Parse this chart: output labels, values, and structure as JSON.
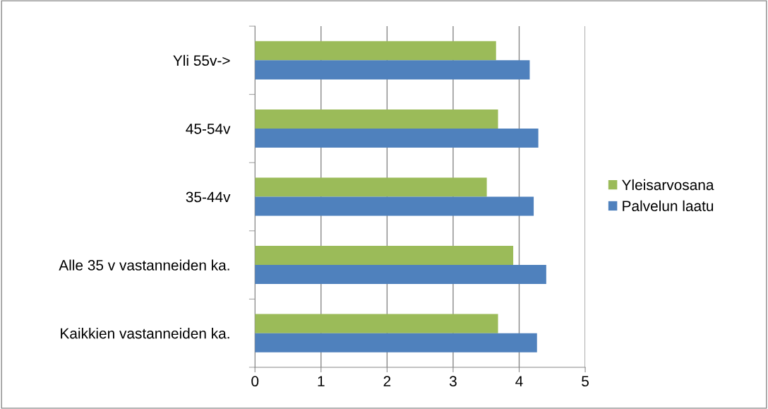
{
  "chart_data": {
    "type": "bar",
    "orientation": "horizontal",
    "categories": [
      "Yli 55v->",
      "45-54v",
      "35-44v",
      "Alle 35 v vastanneiden ka.",
      "Kaikkien vastanneiden ka."
    ],
    "series": [
      {
        "name": "Yleisarvosana",
        "color": "#9bbb59",
        "values": [
          3.65,
          3.68,
          3.51,
          3.91,
          3.68
        ]
      },
      {
        "name": "Palvelun laatu",
        "color": "#4f81bd",
        "values": [
          4.16,
          4.29,
          4.22,
          4.41,
          4.27
        ]
      }
    ],
    "xlim": [
      0,
      5
    ],
    "xticks": [
      0,
      1,
      2,
      3,
      4,
      5
    ],
    "grid": "x",
    "legend": "right"
  }
}
